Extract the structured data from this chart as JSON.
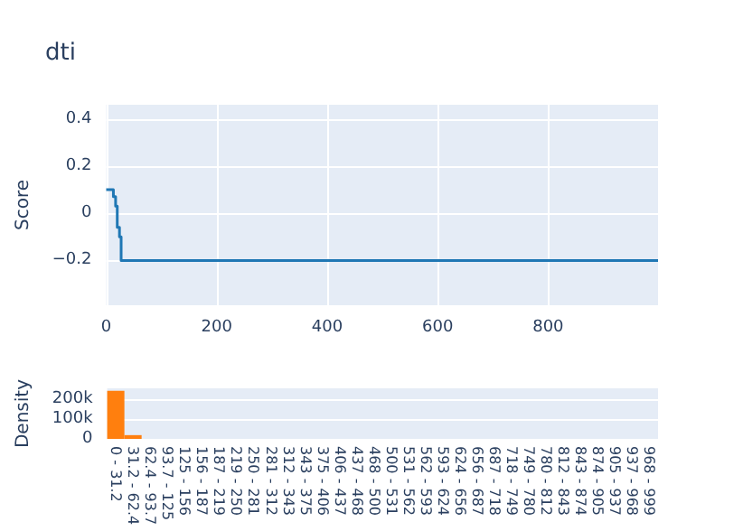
{
  "chart_data": [
    {
      "type": "step",
      "title": "dti",
      "ylabel": "Score",
      "x": [
        0,
        13,
        17,
        20,
        24,
        27,
        999
      ],
      "values": [
        0.1,
        0.07,
        0.03,
        -0.06,
        -0.1,
        -0.2,
        -0.2
      ],
      "color": "#1f77b4",
      "xlim": [
        0,
        999
      ],
      "xticks": [
        0,
        200,
        400,
        600,
        800
      ],
      "ylim": [
        -0.39,
        0.46
      ],
      "yticks": [
        0.4,
        0.2,
        0,
        {
          "value": -0.2,
          "label": "−0.2"
        }
      ],
      "grid": true
    },
    {
      "type": "bar",
      "ylabel": "Density",
      "categories": [
        "0 - 31.2",
        "31.2 - 62.4",
        "62.4 - 93.7",
        "93.7 - 125",
        "125 - 156",
        "156 - 187",
        "187 - 219",
        "219 - 250",
        "250 - 281",
        "281 - 312",
        "312 - 343",
        "343 - 375",
        "375 - 406",
        "406 - 437",
        "437 - 468",
        "468 - 500",
        "500 - 531",
        "531 - 562",
        "562 - 593",
        "593 - 624",
        "624 - 656",
        "656 - 687",
        "687 - 718",
        "718 - 749",
        "749 - 780",
        "780 - 812",
        "812 - 843",
        "843 - 874",
        "874 - 905",
        "905 - 937",
        "937 - 968",
        "968 - 999"
      ],
      "values": [
        244000,
        19000,
        0,
        0,
        0,
        0,
        0,
        0,
        0,
        0,
        0,
        0,
        0,
        0,
        0,
        0,
        0,
        0,
        0,
        0,
        0,
        0,
        0,
        0,
        0,
        0,
        0,
        0,
        0,
        0,
        0,
        0
      ],
      "color": "#ff7f0e",
      "ylim": [
        0,
        256000
      ],
      "yticks": [
        {
          "value": 0,
          "label": "0"
        },
        {
          "value": 100000,
          "label": "100k"
        },
        {
          "value": 200000,
          "label": "200k"
        }
      ],
      "grid": "y"
    }
  ]
}
